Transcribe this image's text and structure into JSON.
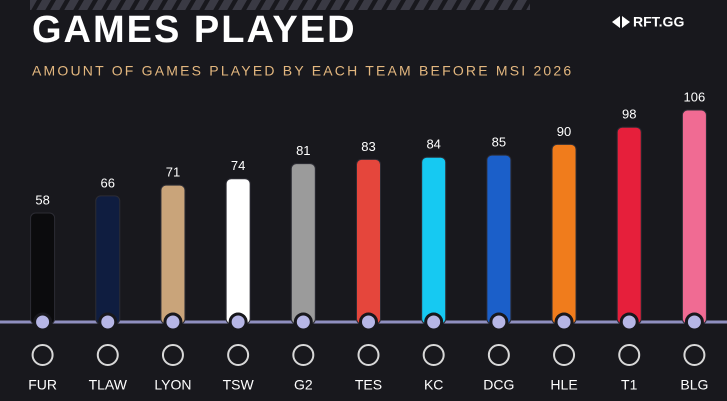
{
  "chart_data": {
    "type": "bar",
    "title": "GAMES PLAYED",
    "subtitle": "AMOUNT OF GAMES PLAYED BY EACH TEAM BEFORE MSI 2026",
    "brand": "RFT.GG",
    "categories": [
      "FUR",
      "TLAW",
      "LYON",
      "TSW",
      "G2",
      "TES",
      "KC",
      "DCG",
      "HLE",
      "T1",
      "BLG"
    ],
    "values": [
      58,
      66,
      71,
      74,
      81,
      83,
      84,
      85,
      90,
      98,
      106
    ],
    "colors": [
      "#0b0b0d",
      "#0f1d40",
      "#c9a47a",
      "#ffffff",
      "#9b9b9b",
      "#e5463c",
      "#16c9f2",
      "#1b5fc9",
      "#f07c1c",
      "#e61f3b",
      "#f06b93"
    ]
  }
}
